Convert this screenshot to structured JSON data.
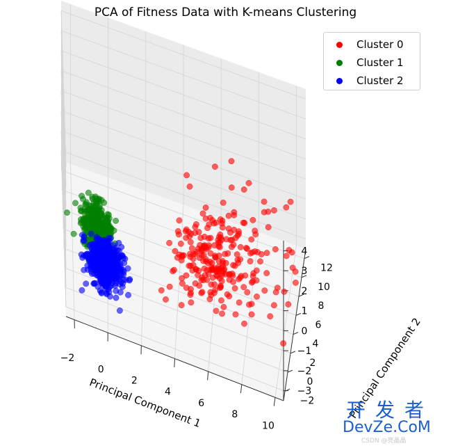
{
  "chart_data": {
    "type": "scatter",
    "projection": "3d",
    "title": "PCA of Fitness Data with K-means Clustering",
    "xlabel": "Principal Component 1",
    "ylabel": "Principal Component 2",
    "zlabel": "",
    "xlim": [
      -2.5,
      10.5
    ],
    "ylim": [
      -3,
      13
    ],
    "zlim": [
      -3.5,
      4.5
    ],
    "xticks": [
      -2,
      0,
      2,
      4,
      6,
      8,
      10
    ],
    "yticks": [
      -2,
      0,
      2,
      4,
      6,
      8,
      10,
      12
    ],
    "zticks": [
      -3,
      -2,
      -1,
      0,
      1,
      2,
      3,
      4
    ],
    "grid": true,
    "legend_position": "top-right",
    "series": [
      {
        "name": "Cluster 0",
        "color": "#ff0000",
        "count": 260,
        "center": [
          6.0,
          3.5,
          -1.2
        ],
        "spread": [
          1.2,
          2.0,
          0.55
        ]
      },
      {
        "name": "Cluster 1",
        "color": "#008000",
        "count": 380,
        "center": [
          -0.6,
          -1.0,
          0.6
        ],
        "spread": [
          0.45,
          0.45,
          0.55
        ]
      },
      {
        "name": "Cluster 2",
        "color": "#0000ff",
        "count": 560,
        "center": [
          -0.2,
          -0.5,
          -1.3
        ],
        "spread": [
          0.5,
          0.5,
          0.5
        ]
      }
    ]
  },
  "watermark": {
    "cn": "开发者",
    "en": "DevZe.CoM",
    "small": "CSDN @亮晶晶"
  }
}
